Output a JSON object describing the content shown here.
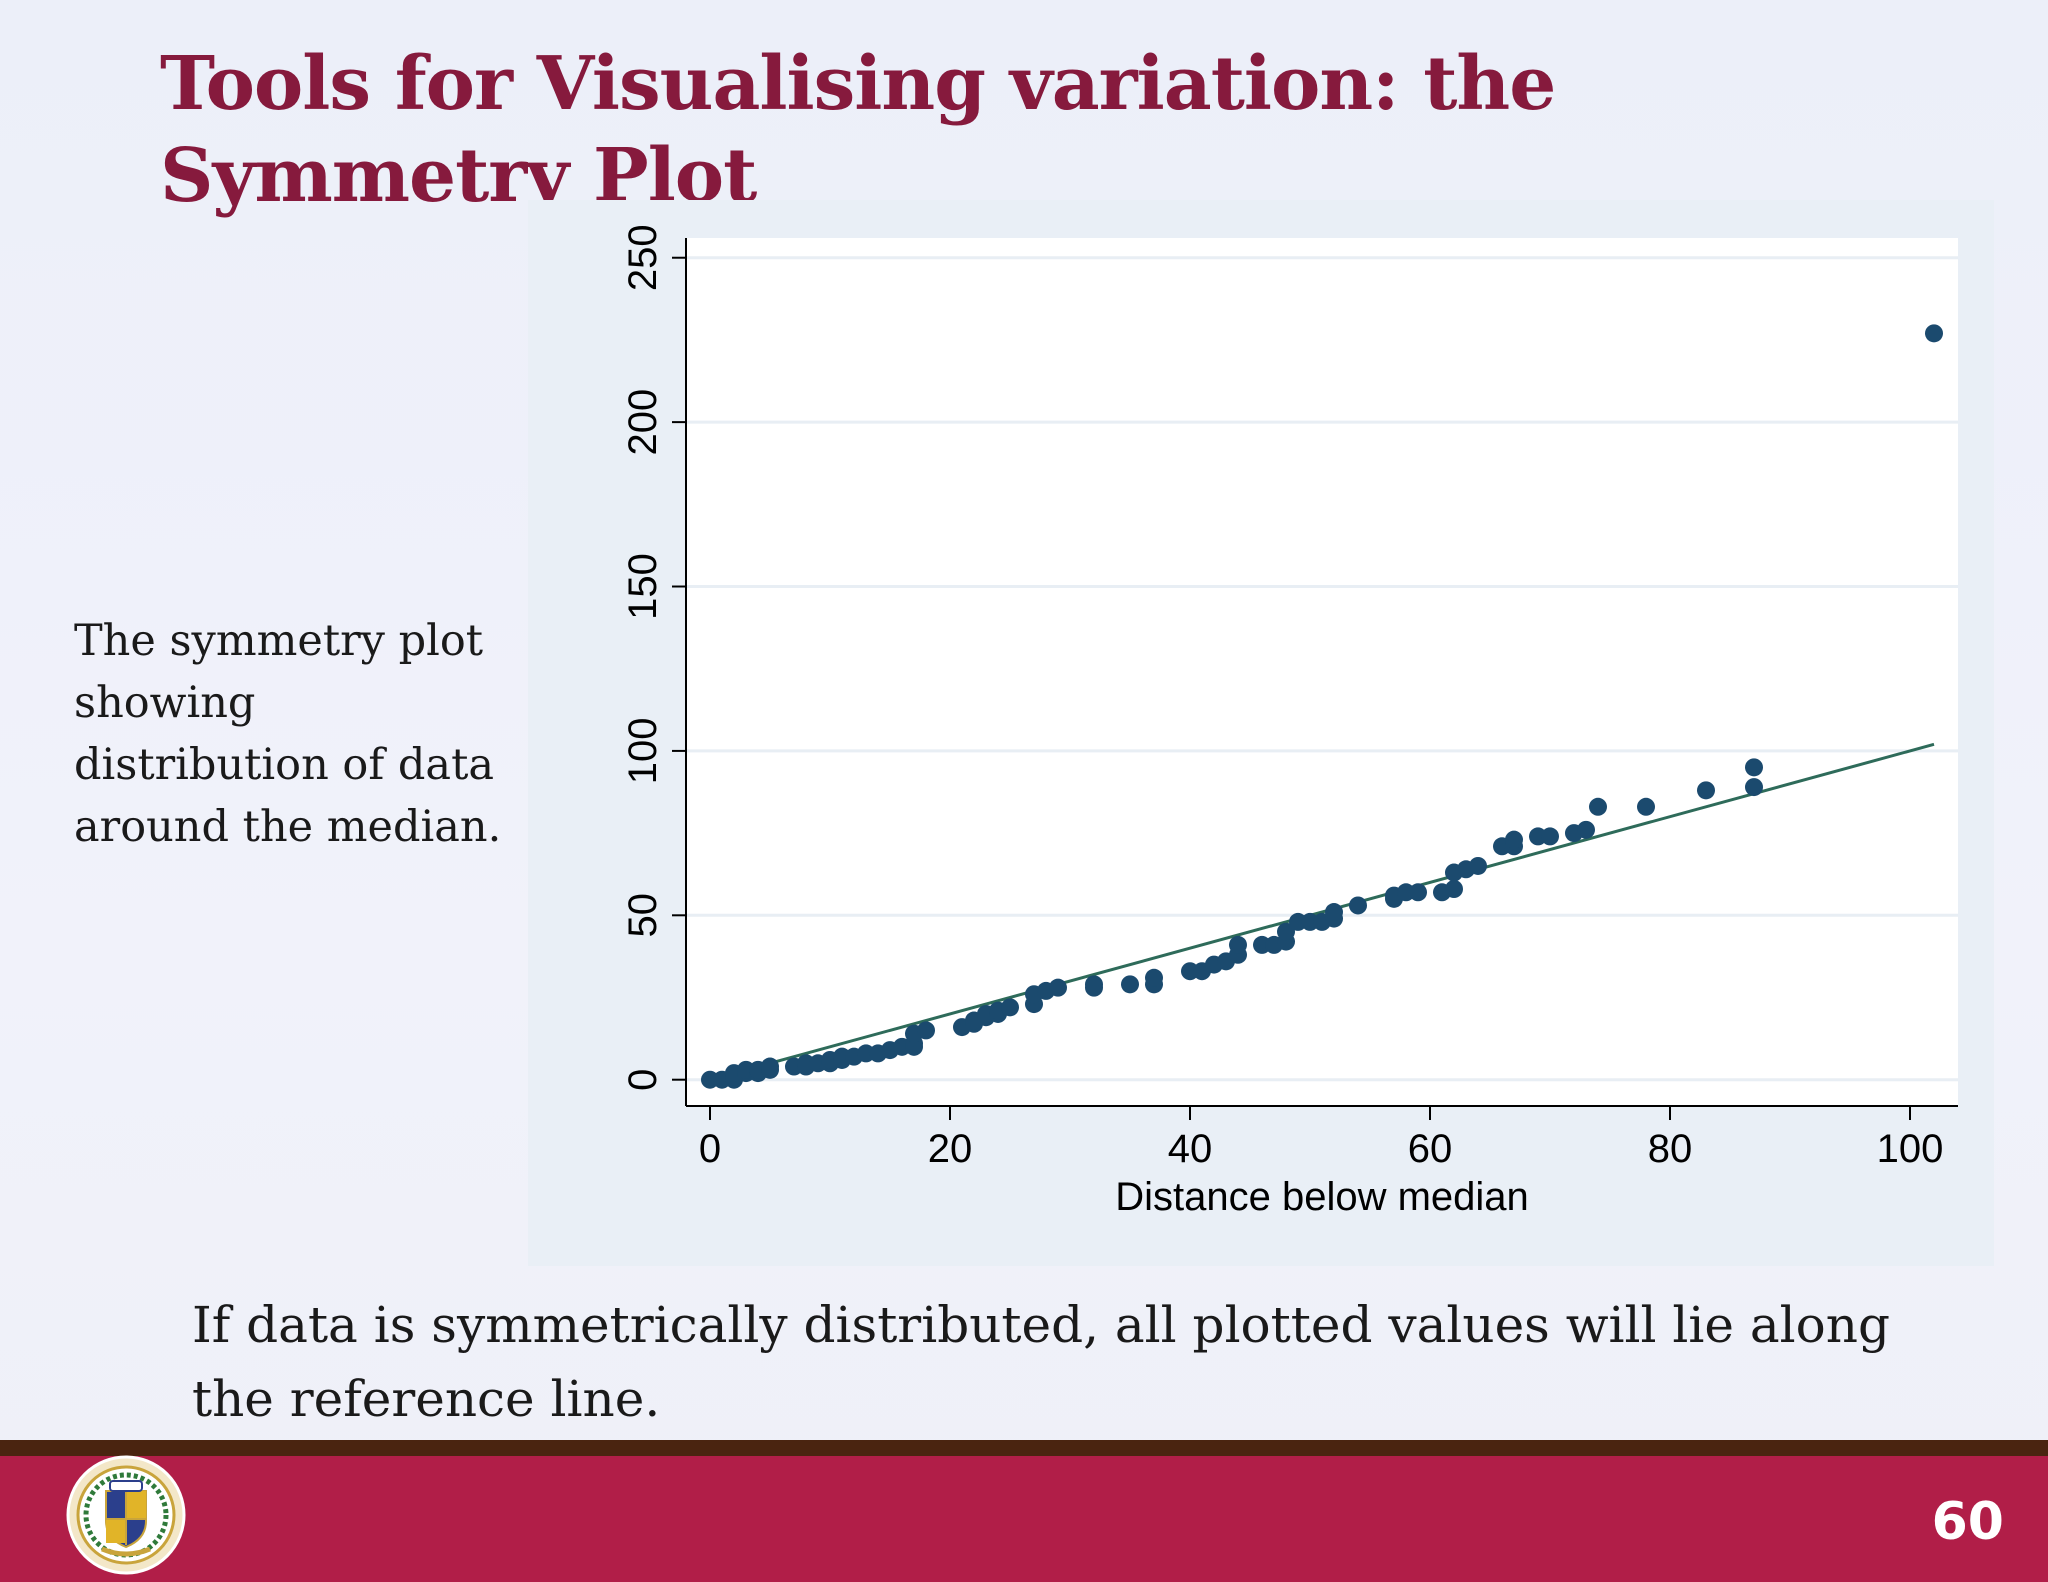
{
  "slide": {
    "title": "Tools for Visualising variation: the Symmetry Plot",
    "side_text": "The symmetry plot showing distribution of data around the median.",
    "bottom_text": "If data is symmetrically distributed, all plotted values will lie along the reference line.",
    "page_number": "60",
    "logo_icon": "university-crest-icon",
    "colors": {
      "title": "#861a3d",
      "footer": "#b11e48",
      "footer_line": "#4a2410",
      "points": "#1b4a6e",
      "reference_line": "#2e6b5a"
    }
  },
  "chart_data": {
    "type": "scatter",
    "title": "",
    "xlabel": "Distance below median",
    "ylabel": "",
    "xlim": [
      -2,
      104
    ],
    "ylim": [
      -8,
      256
    ],
    "x_ticks": [
      0,
      20,
      40,
      60,
      80,
      100
    ],
    "y_ticks": [
      0,
      50,
      100,
      150,
      200,
      250
    ],
    "grid": true,
    "reference_line": {
      "x": [
        0,
        102
      ],
      "y": [
        0,
        102
      ]
    },
    "points": [
      [
        0,
        0
      ],
      [
        1,
        0
      ],
      [
        2,
        0
      ],
      [
        2,
        1
      ],
      [
        2,
        2
      ],
      [
        3,
        2
      ],
      [
        3,
        3
      ],
      [
        4,
        2
      ],
      [
        4,
        3
      ],
      [
        5,
        3
      ],
      [
        5,
        4
      ],
      [
        7,
        4
      ],
      [
        8,
        4
      ],
      [
        8,
        5
      ],
      [
        9,
        5
      ],
      [
        10,
        5
      ],
      [
        10,
        6
      ],
      [
        11,
        6
      ],
      [
        11,
        7
      ],
      [
        12,
        7
      ],
      [
        13,
        8
      ],
      [
        14,
        8
      ],
      [
        15,
        9
      ],
      [
        16,
        10
      ],
      [
        17,
        10
      ],
      [
        17,
        11
      ],
      [
        17,
        14
      ],
      [
        18,
        15
      ],
      [
        21,
        16
      ],
      [
        22,
        17
      ],
      [
        22,
        18
      ],
      [
        23,
        19
      ],
      [
        23,
        20
      ],
      [
        24,
        20
      ],
      [
        24,
        21
      ],
      [
        25,
        22
      ],
      [
        27,
        23
      ],
      [
        27,
        26
      ],
      [
        28,
        27
      ],
      [
        29,
        28
      ],
      [
        32,
        28
      ],
      [
        32,
        29
      ],
      [
        35,
        29
      ],
      [
        37,
        29
      ],
      [
        37,
        31
      ],
      [
        40,
        33
      ],
      [
        41,
        33
      ],
      [
        42,
        35
      ],
      [
        43,
        36
      ],
      [
        44,
        38
      ],
      [
        44,
        41
      ],
      [
        46,
        41
      ],
      [
        47,
        41
      ],
      [
        48,
        42
      ],
      [
        48,
        45
      ],
      [
        49,
        48
      ],
      [
        50,
        48
      ],
      [
        51,
        48
      ],
      [
        52,
        49
      ],
      [
        52,
        51
      ],
      [
        54,
        53
      ],
      [
        57,
        55
      ],
      [
        57,
        56
      ],
      [
        58,
        57
      ],
      [
        59,
        57
      ],
      [
        61,
        57
      ],
      [
        62,
        58
      ],
      [
        62,
        63
      ],
      [
        63,
        64
      ],
      [
        64,
        65
      ],
      [
        66,
        71
      ],
      [
        67,
        71
      ],
      [
        67,
        73
      ],
      [
        69,
        74
      ],
      [
        70,
        74
      ],
      [
        72,
        75
      ],
      [
        73,
        76
      ],
      [
        74,
        83
      ],
      [
        78,
        83
      ],
      [
        83,
        88
      ],
      [
        87,
        89
      ],
      [
        87,
        95
      ],
      [
        102,
        227
      ]
    ]
  }
}
